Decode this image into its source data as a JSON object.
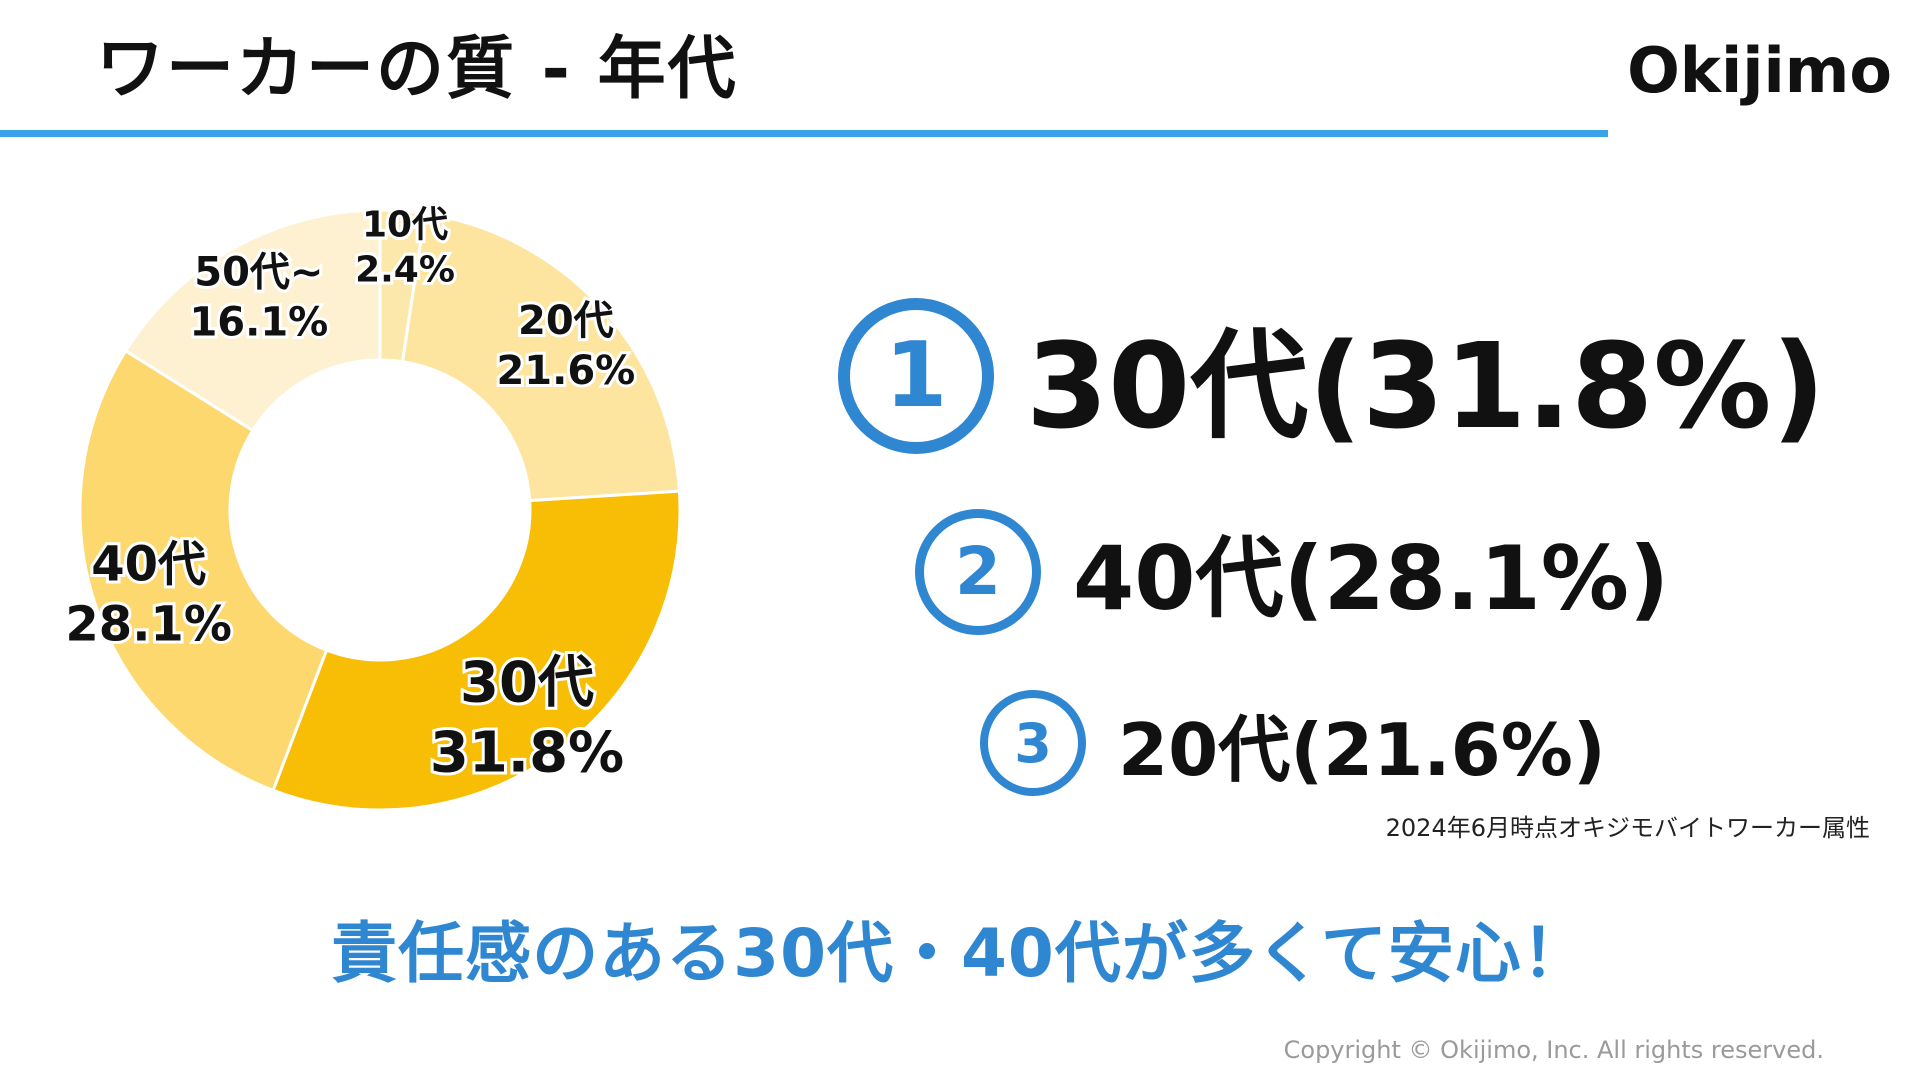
{
  "header": {
    "title": "ワーカーの質 - 年代",
    "brand": "Okijimo"
  },
  "colors": {
    "accent": "#2f86d1",
    "rule": "#3aa3e8"
  },
  "chart_data": {
    "type": "pie",
    "donut": true,
    "title": "",
    "slices": [
      {
        "label": "10代",
        "value": 2.4,
        "display": "2.4%",
        "color": "#fde8ac"
      },
      {
        "label": "20代",
        "value": 21.6,
        "display": "21.6%",
        "color": "#fde59f"
      },
      {
        "label": "30代",
        "value": 31.8,
        "display": "31.8%",
        "color": "#f8bd05"
      },
      {
        "label": "40代",
        "value": 28.1,
        "display": "28.1%",
        "color": "#fcd86f"
      },
      {
        "label": "50代~",
        "value": 16.1,
        "display": "16.1%",
        "color": "#fdf1d2"
      }
    ]
  },
  "ranking": [
    {
      "number": "1",
      "text": "30代(31.8%)"
    },
    {
      "number": "2",
      "text": "40代(28.1%)"
    },
    {
      "number": "3",
      "text": "20代(21.6%)"
    }
  ],
  "note": "2024年6月時点オキジモバイトワーカー属性",
  "headline": "責任感のある30代・40代が多くて安心！",
  "footer": {
    "copyright": "Copyright © Okijimo, Inc. All rights reserved."
  }
}
